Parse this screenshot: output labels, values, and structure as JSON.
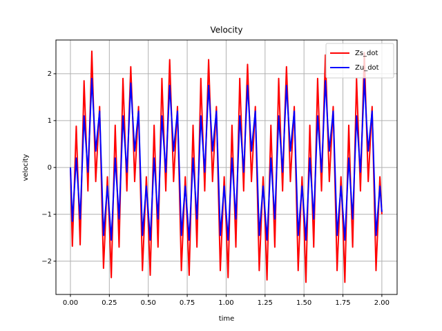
{
  "chart_data": {
    "type": "line",
    "title": "Velocity",
    "xlabel": "time",
    "ylabel": "velocity",
    "x": [
      0,
      0.0125,
      0.025,
      0.0375,
      0.05,
      0.0625,
      0.075,
      0.0875,
      0.1,
      0.1125,
      0.125,
      0.1375,
      0.15,
      0.1625,
      0.175,
      0.1875,
      0.2,
      0.2125,
      0.225,
      0.2375,
      0.25,
      0.2625,
      0.275,
      0.2875,
      0.3,
      0.3125,
      0.325,
      0.3375,
      0.35,
      0.3625,
      0.375,
      0.3875,
      0.4,
      0.4125,
      0.425,
      0.4375,
      0.45,
      0.4625,
      0.475,
      0.4875,
      0.5,
      0.5125,
      0.525,
      0.5375,
      0.55,
      0.5625,
      0.575,
      0.5875,
      0.6,
      0.6125,
      0.625,
      0.6375,
      0.65,
      0.6625,
      0.675,
      0.6875,
      0.7,
      0.7125,
      0.725,
      0.7375,
      0.75,
      0.7625,
      0.775,
      0.7875,
      0.8,
      0.8125,
      0.825,
      0.8375,
      0.85,
      0.8625,
      0.875,
      0.8875,
      0.9,
      0.9125,
      0.925,
      0.9375,
      0.95,
      0.9625,
      0.975,
      0.9875,
      1,
      1.0125,
      1.025,
      1.0375,
      1.05,
      1.0625,
      1.075,
      1.0875,
      1.1,
      1.1125,
      1.125,
      1.1375,
      1.15,
      1.1625,
      1.175,
      1.1875,
      1.2,
      1.2125,
      1.225,
      1.2375,
      1.25,
      1.2625,
      1.275,
      1.2875,
      1.3,
      1.3125,
      1.325,
      1.3375,
      1.35,
      1.3625,
      1.375,
      1.3875,
      1.4,
      1.4125,
      1.425,
      1.4375,
      1.45,
      1.4625,
      1.475,
      1.4875,
      1.5,
      1.5125,
      1.525,
      1.5375,
      1.55,
      1.5625,
      1.575,
      1.5875,
      1.6,
      1.6125,
      1.625,
      1.6375,
      1.65,
      1.6625,
      1.675,
      1.6875,
      1.7,
      1.7125,
      1.725,
      1.7375,
      1.75,
      1.7625,
      1.775,
      1.7875,
      1.8,
      1.8125,
      1.825,
      1.8375,
      1.85,
      1.8625,
      1.875,
      1.8875,
      1.9,
      1.9125,
      1.925,
      1.9375,
      1.95,
      1.9625,
      1.975,
      1.9875,
      2
    ],
    "series": [
      {
        "name": "Zs_dot",
        "color": "#ff0000",
        "values": [
          0,
          -1.68,
          -0.4,
          0.88,
          -0.4,
          -1.65,
          0.1,
          1.85,
          0.7,
          -0.5,
          1.0,
          2.48,
          1.1,
          -0.3,
          0.5,
          1.3,
          -0.43,
          -2.15,
          -1.2,
          -0.2,
          -1.2,
          -2.35,
          -0.7,
          0.9,
          -0.4,
          -1.7,
          0.1,
          1.9,
          0.7,
          -0.5,
          0.95,
          2.15,
          1.05,
          -0.3,
          0.5,
          1.3,
          -0.45,
          -2.2,
          -1.2,
          -0.2,
          -1.2,
          -2.3,
          -0.7,
          0.9,
          -0.4,
          -1.7,
          0.1,
          1.9,
          0.7,
          -0.5,
          0.95,
          2.3,
          1.05,
          -0.3,
          0.5,
          1.3,
          -0.45,
          -2.2,
          -1.2,
          -0.2,
          -1.2,
          -2.3,
          -0.7,
          0.9,
          -0.4,
          -1.7,
          0.1,
          1.9,
          0.7,
          -0.5,
          0.95,
          2.3,
          1.05,
          -0.3,
          0.5,
          1.3,
          -0.45,
          -2.2,
          -1.2,
          -0.2,
          -1.2,
          -2.35,
          -0.7,
          0.9,
          -0.4,
          -1.7,
          0.1,
          1.9,
          0.7,
          -0.5,
          0.95,
          2.2,
          1.05,
          -0.3,
          0.5,
          1.3,
          -0.45,
          -2.2,
          -1.2,
          -0.2,
          -1.2,
          -2.4,
          -0.7,
          0.9,
          -0.4,
          -1.7,
          0.1,
          1.9,
          0.7,
          -0.5,
          0.95,
          2.15,
          1.05,
          -0.3,
          0.5,
          1.3,
          -0.45,
          -2.2,
          -1.2,
          -0.2,
          -1.2,
          -2.45,
          -0.7,
          0.9,
          -0.4,
          -1.7,
          0.1,
          1.9,
          0.7,
          -0.5,
          0.95,
          2.4,
          1.05,
          -0.3,
          0.5,
          1.3,
          -0.45,
          -2.2,
          -1.2,
          -0.2,
          -1.2,
          -2.45,
          -0.7,
          0.9,
          -0.4,
          -1.7,
          0.1,
          1.9,
          0.7,
          -0.5,
          0.95,
          2.45,
          1.05,
          -0.3,
          0.5,
          1.3,
          -0.45,
          -2.2,
          -1.2,
          -0.2,
          -1.0
        ]
      },
      {
        "name": "Zu_dot",
        "color": "#0000ff",
        "values": [
          0,
          -1.15,
          -0.48,
          0.2,
          -0.45,
          -1.1,
          0,
          1.1,
          0.5,
          -0.1,
          0.9,
          1.9,
          1.1,
          0.35,
          0.78,
          1.2,
          -0.12,
          -1.45,
          -0.92,
          -0.4,
          -0.95,
          -1.55,
          -0.68,
          0.2,
          -0.45,
          -1.1,
          0,
          1.1,
          0.5,
          -0.1,
          0.85,
          1.8,
          1.07,
          0.35,
          0.78,
          1.2,
          -0.12,
          -1.45,
          -0.92,
          -0.4,
          -0.95,
          -1.55,
          -0.68,
          0.2,
          -0.45,
          -1.1,
          0,
          1.1,
          0.5,
          -0.1,
          0.85,
          1.75,
          1.07,
          0.35,
          0.78,
          1.2,
          -0.12,
          -1.45,
          -0.92,
          -0.4,
          -0.95,
          -1.55,
          -0.68,
          0.2,
          -0.45,
          -1.1,
          0,
          1.1,
          0.5,
          -0.1,
          0.85,
          1.75,
          1.07,
          0.35,
          0.78,
          1.2,
          -0.12,
          -1.45,
          -0.92,
          -0.4,
          -0.95,
          -1.55,
          -0.68,
          0.2,
          -0.45,
          -1.1,
          0,
          1.1,
          0.5,
          -0.1,
          0.85,
          1.75,
          1.07,
          0.35,
          0.78,
          1.2,
          -0.12,
          -1.45,
          -0.92,
          -0.4,
          -0.95,
          -1.55,
          -0.68,
          0.2,
          -0.45,
          -1.1,
          0,
          1.1,
          0.5,
          -0.1,
          0.85,
          1.75,
          1.07,
          0.35,
          0.78,
          1.2,
          -0.12,
          -1.45,
          -0.92,
          -0.4,
          -0.95,
          -1.55,
          -0.68,
          0.2,
          -0.45,
          -1.1,
          0,
          1.1,
          0.5,
          -0.1,
          0.85,
          1.85,
          1.07,
          0.35,
          0.78,
          1.2,
          -0.12,
          -1.45,
          -0.92,
          -0.4,
          -0.95,
          -1.55,
          -0.68,
          0.2,
          -0.45,
          -1.1,
          0,
          1.1,
          0.5,
          -0.1,
          0.85,
          1.9,
          1.07,
          0.35,
          0.78,
          1.2,
          -0.12,
          -1.45,
          -0.92,
          -0.4,
          -0.95
        ]
      }
    ],
    "xlim": [
      -0.093,
      2.098
    ],
    "ylim": [
      -2.71,
      2.72
    ],
    "xticks": [
      {
        "value": 0,
        "label": "0.00"
      },
      {
        "value": 0.25,
        "label": "0.25"
      },
      {
        "value": 0.5,
        "label": "0.50"
      },
      {
        "value": 0.75,
        "label": "0.75"
      },
      {
        "value": 1,
        "label": "1.00"
      },
      {
        "value": 1.25,
        "label": "1.25"
      },
      {
        "value": 1.5,
        "label": "1.50"
      },
      {
        "value": 1.75,
        "label": "1.75"
      },
      {
        "value": 2,
        "label": "2.00"
      }
    ],
    "yticks": [
      {
        "value": -2,
        "label": "−2"
      },
      {
        "value": -1,
        "label": "−1"
      },
      0,
      1,
      2
    ],
    "grid": true,
    "legend": "upper right"
  }
}
